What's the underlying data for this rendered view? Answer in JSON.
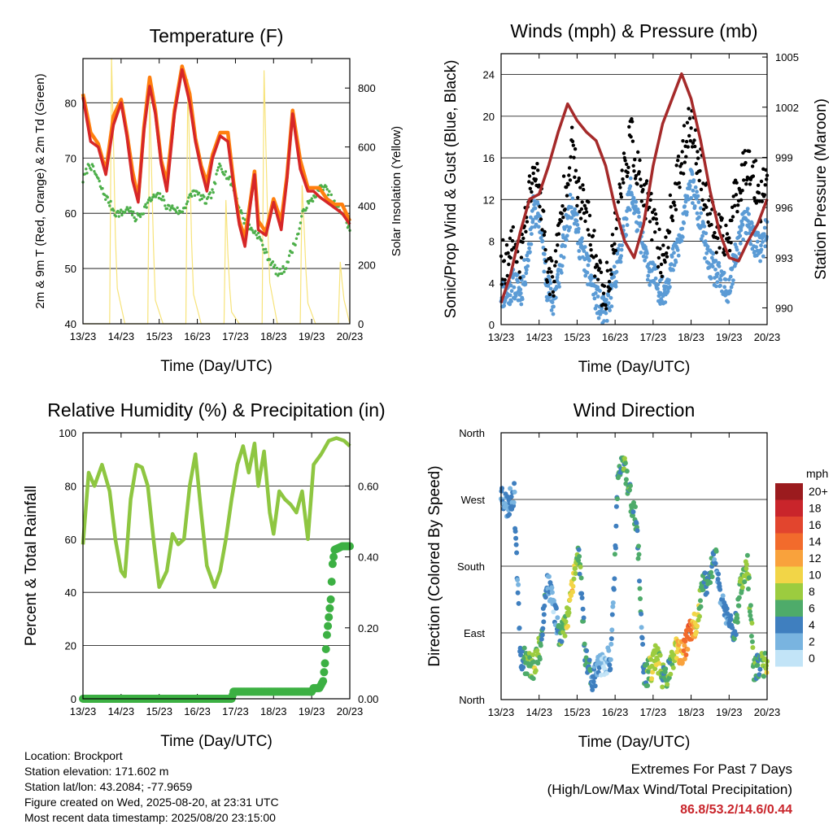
{
  "chart_data": [
    {
      "type": "line",
      "title": "Temperature (F)",
      "xlabel": "Time (Day/UTC)",
      "ylabel": "2m & 9m T (Red, Orange) & 2m Td (Green)",
      "y2label": "Solar Insolation (Yellow)",
      "x_ticks": [
        "13/23",
        "14/23",
        "15/23",
        "16/23",
        "17/23",
        "18/23",
        "19/23",
        "20/23"
      ],
      "xlim": [
        0,
        7
      ],
      "ylim": [
        40,
        88
      ],
      "y_ticks": [
        40,
        50,
        60,
        70,
        80
      ],
      "y2lim": [
        0,
        900
      ],
      "y2_ticks": [
        0,
        200,
        400,
        600,
        800
      ],
      "colors": {
        "t2m": "#d62728",
        "t9m": "#ff7f0e",
        "td": "#4daf4a",
        "solar": "#f7e37a"
      },
      "series": [
        {
          "key": "t2m",
          "x": [
            0,
            0.2,
            0.4,
            0.6,
            0.8,
            1.0,
            1.15,
            1.3,
            1.45,
            1.6,
            1.75,
            1.9,
            2.05,
            2.2,
            2.4,
            2.6,
            2.8,
            2.95,
            3.1,
            3.25,
            3.4,
            3.6,
            3.8,
            3.95,
            4.1,
            4.25,
            4.4,
            4.5,
            4.6,
            4.8,
            5.0,
            5.2,
            5.35,
            5.5,
            5.7,
            5.9,
            6.05,
            6.2,
            6.4,
            6.6,
            6.8,
            7.0
          ],
          "y": [
            81,
            73,
            72,
            67,
            76,
            80,
            74,
            66,
            62,
            75,
            83,
            78,
            69,
            64,
            78,
            86,
            80,
            73,
            68,
            64,
            70,
            74,
            73,
            65,
            58,
            54,
            62,
            67,
            57,
            56,
            62,
            57,
            66,
            78,
            68,
            64,
            64,
            63,
            62,
            61,
            60,
            58
          ]
        },
        {
          "key": "solar",
          "x": [
            0,
            0.7,
            0.75,
            0.8,
            0.85,
            0.9,
            1.1,
            1.7,
            1.75,
            1.8,
            1.85,
            1.9,
            2.1,
            2.7,
            2.75,
            2.8,
            2.85,
            2.9,
            3.1,
            3.7,
            3.75,
            3.8,
            3.85,
            3.9,
            4.1,
            4.7,
            4.75,
            4.8,
            4.85,
            4.9,
            5.1,
            5.7,
            5.75,
            5.8,
            5.85,
            5.9,
            6.1,
            6.7,
            6.75,
            6.8,
            6.85,
            7.0
          ],
          "y": [
            0,
            0,
            900,
            620,
            300,
            120,
            0,
            0,
            780,
            520,
            260,
            80,
            0,
            0,
            830,
            560,
            280,
            100,
            0,
            0,
            420,
            240,
            120,
            40,
            0,
            0,
            860,
            600,
            320,
            140,
            0,
            0,
            470,
            330,
            180,
            70,
            0,
            0,
            210,
            140,
            80,
            0
          ]
        }
      ],
      "td_points": {
        "x_start": 0,
        "x_end": 7,
        "values": [
          66,
          69,
          67,
          64,
          62,
          60,
          60,
          61,
          59,
          60,
          62,
          63,
          63,
          61,
          61,
          60,
          62,
          64,
          63,
          62,
          64,
          69,
          67,
          65,
          61,
          58,
          57,
          56,
          53,
          51,
          49,
          50,
          53,
          56,
          61,
          62,
          64,
          65,
          63,
          61,
          60,
          57
        ]
      }
    },
    {
      "type": "scatter",
      "title": "Winds (mph) & Pressure (mb)",
      "xlabel": "Time (Day/UTC)",
      "ylabel": "Sonic/Prop Wind & Gust (Blue, Black)",
      "y2label": "Station Pressure (Maroon)",
      "x_ticks": [
        "13/23",
        "14/23",
        "15/23",
        "16/23",
        "17/23",
        "18/23",
        "19/23",
        "20/23"
      ],
      "xlim": [
        0,
        7
      ],
      "ylim": [
        0,
        26
      ],
      "y_ticks": [
        0,
        4,
        8,
        12,
        16,
        20,
        24
      ],
      "y2lim": [
        989,
        1005.2
      ],
      "y2_ticks": [
        990,
        993,
        996,
        999,
        1002,
        1005
      ],
      "colors": {
        "wind": "#5b9bd5",
        "gust": "#000000",
        "pressure": "#a52a2a"
      },
      "wind_profile": [
        3,
        3,
        4,
        3,
        6,
        11,
        10,
        4,
        2,
        5,
        9,
        12,
        8,
        6,
        4,
        2,
        1,
        3,
        6,
        9,
        13,
        10,
        7,
        5,
        4,
        3,
        5,
        7,
        9,
        14,
        12,
        9,
        6,
        5,
        4,
        3,
        6,
        9,
        10,
        8,
        7,
        9
      ],
      "gust_profile": [
        6,
        6,
        8,
        6,
        11,
        15,
        13,
        6,
        4,
        9,
        14,
        17,
        12,
        11,
        8,
        5,
        3,
        6,
        11,
        15,
        18,
        15,
        12,
        11,
        8,
        6,
        10,
        13,
        16,
        20,
        17,
        14,
        11,
        9,
        8,
        8,
        12,
        14,
        16,
        14,
        12,
        15
      ],
      "series": [
        {
          "key": "pressure",
          "x": [
            0,
            0.25,
            0.5,
            0.75,
            1.0,
            1.25,
            1.5,
            1.75,
            2.0,
            2.25,
            2.5,
            2.75,
            3.0,
            3.25,
            3.5,
            3.75,
            4.0,
            4.25,
            4.5,
            4.75,
            5.0,
            5.25,
            5.5,
            5.75,
            6.0,
            6.25,
            6.5,
            6.75,
            7.0
          ],
          "y": [
            990.3,
            992.0,
            994.5,
            996.5,
            996.8,
            998.5,
            1000.5,
            1002.2,
            1001.2,
            1000.5,
            1000.0,
            998.5,
            996.0,
            994.0,
            993.0,
            995.0,
            998.5,
            1001.0,
            1002.5,
            1004.0,
            1002.5,
            1000.0,
            997.0,
            994.5,
            993.0,
            992.8,
            994.0,
            995.0,
            996.5
          ]
        }
      ]
    },
    {
      "type": "line",
      "title": "Relative Humidity (%) & Precipitation (in)",
      "xlabel": "Time (Day/UTC)",
      "ylabel": "Percent & Total Rainfall",
      "x_ticks": [
        "13/23",
        "14/23",
        "15/23",
        "16/23",
        "17/23",
        "18/23",
        "19/23",
        "20/23"
      ],
      "xlim": [
        0,
        7
      ],
      "ylim": [
        0,
        100
      ],
      "y_ticks": [
        0,
        20,
        40,
        60,
        80,
        100
      ],
      "y2lim": [
        0,
        0.75
      ],
      "y2_ticks": [
        "0.00",
        "0.20",
        "0.40",
        "0.60"
      ],
      "colors": {
        "rh": "#8ec641",
        "precip": "#3cb043"
      },
      "series": [
        {
          "key": "rh",
          "x": [
            0,
            0.15,
            0.3,
            0.5,
            0.7,
            0.85,
            1.0,
            1.1,
            1.25,
            1.4,
            1.55,
            1.7,
            1.85,
            2.0,
            2.2,
            2.35,
            2.5,
            2.65,
            2.8,
            2.95,
            3.1,
            3.25,
            3.45,
            3.6,
            3.75,
            3.9,
            4.05,
            4.2,
            4.35,
            4.5,
            4.6,
            4.75,
            4.9,
            5.0,
            5.15,
            5.3,
            5.45,
            5.6,
            5.75,
            5.9,
            6.05,
            6.25,
            6.45,
            6.65,
            6.85,
            7.0
          ],
          "y": [
            58,
            85,
            80,
            88,
            78,
            60,
            48,
            46,
            75,
            88,
            87,
            80,
            60,
            42,
            48,
            62,
            58,
            60,
            80,
            92,
            70,
            50,
            42,
            48,
            60,
            75,
            88,
            95,
            85,
            96,
            80,
            93,
            70,
            62,
            78,
            75,
            73,
            70,
            78,
            60,
            88,
            92,
            97,
            98,
            97,
            95
          ]
        },
        {
          "key": "precip",
          "x": [
            0,
            3.9,
            3.95,
            6.0,
            6.05,
            6.2,
            6.3,
            6.35,
            6.4,
            6.5,
            6.55,
            6.6,
            6.8,
            7.0
          ],
          "y": [
            0,
            0,
            0.02,
            0.02,
            0.03,
            0.03,
            0.05,
            0.1,
            0.18,
            0.28,
            0.38,
            0.42,
            0.43,
            0.43
          ]
        }
      ]
    },
    {
      "type": "scatter",
      "title": "Wind Direction",
      "xlabel": "Time (Day/UTC)",
      "ylabel": "Direction (Colored By Speed)",
      "x_ticks": [
        "13/23",
        "14/23",
        "15/23",
        "16/23",
        "17/23",
        "18/23",
        "19/23",
        "20/23"
      ],
      "xlim": [
        0,
        7
      ],
      "ylim": [
        0,
        360
      ],
      "y_tick_labels": [
        "North",
        "East",
        "South",
        "West",
        "North"
      ],
      "legend_title": "mph",
      "legend_labels": [
        "20+",
        "18",
        "16",
        "14",
        "12",
        "10",
        "8",
        "6",
        "4",
        "2",
        "0"
      ],
      "legend_colors": [
        "#9b1b1e",
        "#c9252b",
        "#e2452e",
        "#f26b2c",
        "#f9a23c",
        "#f2d547",
        "#9ccc3f",
        "#4eab6a",
        "#3f7fbf",
        "#79b4e0",
        "#c2e4f7"
      ],
      "direction_profile": [
        280,
        260,
        280,
        60,
        50,
        45,
        70,
        160,
        130,
        90,
        100,
        160,
        200,
        60,
        30,
        40,
        50,
        60,
        300,
        320,
        270,
        230,
        30,
        40,
        60,
        30,
        40,
        65,
        60,
        90,
        100,
        150,
        160,
        200,
        130,
        110,
        90,
        160,
        180,
        40,
        45,
        50
      ],
      "speed_profile": [
        3,
        3,
        4,
        3,
        6,
        8,
        6,
        4,
        2,
        5,
        8,
        10,
        6,
        5,
        4,
        2,
        1,
        3,
        5,
        6,
        6,
        5,
        4,
        8,
        9,
        6,
        6,
        10,
        12,
        14,
        10,
        6,
        5,
        4,
        3,
        3,
        5,
        7,
        7,
        6,
        6,
        8
      ]
    }
  ],
  "info": {
    "location": "Location: Brockport",
    "elevation": "Station elevation: 171.602 m",
    "latlon": "Station lat/lon: 43.2084; -77.9659",
    "created": "Figure created on Wed, 2025-08-20, at 23:31 UTC",
    "recent": "Most recent data timestamp: 2025/08/20 23:15:00"
  },
  "extremes": {
    "line1": "Extremes For Past 7 Days",
    "line2": "(High/Low/Max Wind/Total Precipitation)",
    "values": "86.8/53.2/14.6/0.44"
  }
}
